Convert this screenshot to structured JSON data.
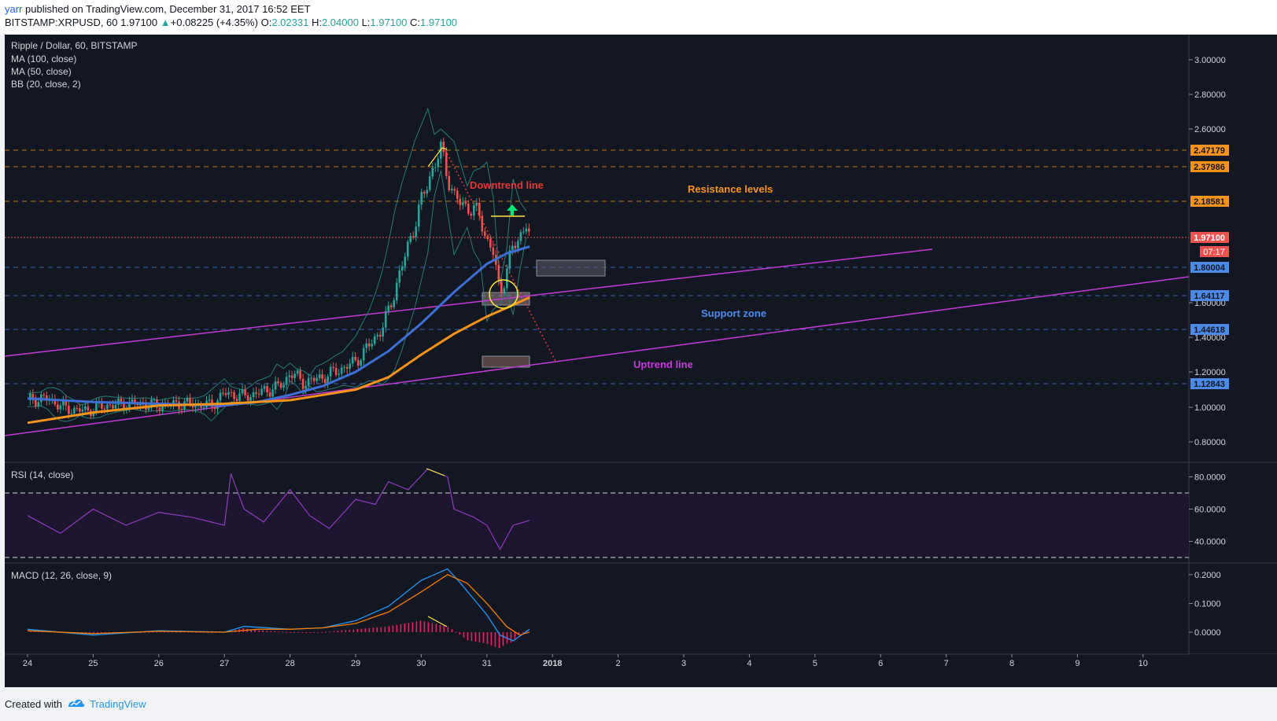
{
  "header": {
    "author": "yarr",
    "published_text": " published on TradingView.com, December 31, 2017 16:52 EET",
    "symbol": "BITSTAMP:XRPUSD, 60",
    "last": "1.97100",
    "change": "+0.08225 (+4.35%)",
    "o_label": "O:",
    "o_value": "2.02331",
    "h_label": "H:",
    "h_value": "2.04000",
    "l_label": "L:",
    "l_value": "1.97100",
    "c_label": "C:",
    "c_value": "1.97100"
  },
  "legend": {
    "title": "Ripple / Dollar, 60, BITSTAMP",
    "ma100": "MA (100, close)",
    "ma50": "MA (50, close)",
    "bb": "BB (20, close, 2)",
    "rsi": "RSI (14, close)",
    "macd": "MACD (12, 26, close, 9)"
  },
  "annotations": {
    "downtrend": "Downtrend line",
    "resistance": "Resistance levels",
    "support": "Support zone",
    "uptrend": "Uptrend line"
  },
  "price_tags": {
    "last_price": "1.97100",
    "countdown": "07:17"
  },
  "footer": {
    "created": "Created with",
    "brand": "TradingView"
  },
  "colors": {
    "background": "#131722",
    "ma100": "#f7931a",
    "ma50": "#3d6fd6",
    "bollinger": "#2a7a75",
    "uptrend": "#c33bd6",
    "resistance": "#f7931a",
    "support": "#4c8ae8",
    "downtrend": "#e53935",
    "rsi": "#8e3dbd",
    "macd": "#2196f3",
    "signal": "#f57c00",
    "histogram": "#e91e63"
  },
  "chart_data": [
    {
      "type": "candlestick",
      "title": "Ripple / Dollar, 60, BITSTAMP",
      "x_axis": {
        "ticks": [
          "24",
          "25",
          "26",
          "27",
          "28",
          "29",
          "30",
          "31",
          "2018",
          "2",
          "3",
          "4",
          "5",
          "6",
          "7",
          "8",
          "9",
          "10"
        ]
      },
      "y_axis": {
        "ticks": [
          "3.00000",
          "2.80000",
          "2.60000",
          "1.60000",
          "1.40000",
          "1.20000",
          "1.00000",
          "0.80000"
        ],
        "range": [
          0.68,
          3.12
        ]
      },
      "resistance_levels": [
        "2.47179",
        "2.37986",
        "2.18581"
      ],
      "support_levels": [
        "1.80004",
        "1.64117",
        "1.44618",
        "1.12843"
      ],
      "last_price": 1.971,
      "price_path": [
        [
          0,
          1.04
        ],
        [
          0.3,
          1.05
        ],
        [
          0.6,
          0.99
        ],
        [
          0.9,
          0.98
        ],
        [
          1.2,
          1.01
        ],
        [
          1.6,
          1.02
        ],
        [
          2.0,
          1.01
        ],
        [
          2.4,
          1.02
        ],
        [
          2.8,
          1.01
        ],
        [
          3.0,
          1.08
        ],
        [
          3.3,
          1.06
        ],
        [
          3.6,
          1.09
        ],
        [
          3.9,
          1.13
        ],
        [
          4.0,
          1.2
        ],
        [
          4.2,
          1.14
        ],
        [
          4.5,
          1.17
        ],
        [
          4.8,
          1.22
        ],
        [
          5.0,
          1.26
        ],
        [
          5.2,
          1.35
        ],
        [
          5.4,
          1.45
        ],
        [
          5.5,
          1.55
        ],
        [
          5.7,
          1.8
        ],
        [
          5.9,
          2.05
        ],
        [
          6.1,
          2.3
        ],
        [
          6.3,
          2.48
        ],
        [
          6.5,
          2.2
        ],
        [
          6.7,
          2.15
        ],
        [
          6.9,
          2.1
        ],
        [
          7.0,
          1.95
        ],
        [
          7.1,
          1.88
        ],
        [
          7.2,
          1.65
        ],
        [
          7.3,
          1.78
        ],
        [
          7.4,
          1.92
        ],
        [
          7.5,
          1.98
        ],
        [
          7.6,
          2.05
        ],
        [
          7.65,
          1.97
        ]
      ],
      "ma50": [
        [
          0,
          1.05
        ],
        [
          1.0,
          1.03
        ],
        [
          2.0,
          1.02
        ],
        [
          3.0,
          1.01
        ],
        [
          3.5,
          1.03
        ],
        [
          4.0,
          1.07
        ],
        [
          4.5,
          1.12
        ],
        [
          5.0,
          1.2
        ],
        [
          5.5,
          1.32
        ],
        [
          6.0,
          1.48
        ],
        [
          6.5,
          1.66
        ],
        [
          7.0,
          1.82
        ],
        [
          7.3,
          1.88
        ],
        [
          7.65,
          1.92
        ]
      ],
      "ma100": [
        [
          0,
          0.91
        ],
        [
          1.0,
          0.97
        ],
        [
          2.0,
          1.01
        ],
        [
          3.0,
          1.02
        ],
        [
          4.0,
          1.04
        ],
        [
          4.5,
          1.07
        ],
        [
          5.0,
          1.1
        ],
        [
          5.5,
          1.17
        ],
        [
          6.0,
          1.3
        ],
        [
          6.5,
          1.42
        ],
        [
          7.0,
          1.52
        ],
        [
          7.3,
          1.57
        ],
        [
          7.65,
          1.63
        ]
      ]
    },
    {
      "type": "line",
      "title": "RSI (14, close)",
      "y_axis": {
        "ticks": [
          "80.0000",
          "60.0000",
          "40.0000"
        ],
        "range": [
          20,
          90
        ]
      },
      "bands": [
        30,
        70
      ],
      "series": [
        [
          0,
          56
        ],
        [
          0.5,
          45
        ],
        [
          1.0,
          60
        ],
        [
          1.5,
          50
        ],
        [
          2.0,
          58
        ],
        [
          2.5,
          55
        ],
        [
          3.0,
          50
        ],
        [
          3.1,
          82
        ],
        [
          3.3,
          60
        ],
        [
          3.6,
          52
        ],
        [
          4.0,
          72
        ],
        [
          4.3,
          56
        ],
        [
          4.6,
          48
        ],
        [
          5.0,
          66
        ],
        [
          5.3,
          63
        ],
        [
          5.5,
          77
        ],
        [
          5.8,
          72
        ],
        [
          6.1,
          85
        ],
        [
          6.4,
          80
        ],
        [
          6.5,
          60
        ],
        [
          6.8,
          55
        ],
        [
          7.0,
          50
        ],
        [
          7.2,
          35
        ],
        [
          7.4,
          50
        ],
        [
          7.65,
          53
        ]
      ]
    },
    {
      "type": "line",
      "title": "MACD (12, 26, close, 9)",
      "y_axis": {
        "ticks": [
          "0.2000",
          "0.1000",
          "0.0000"
        ],
        "range": [
          -0.06,
          0.23
        ]
      },
      "macd": [
        [
          0,
          0.01
        ],
        [
          1.0,
          -0.01
        ],
        [
          2.0,
          0.005
        ],
        [
          3.0,
          0.0
        ],
        [
          3.3,
          0.02
        ],
        [
          4.0,
          0.01
        ],
        [
          4.5,
          0.015
        ],
        [
          5.0,
          0.04
        ],
        [
          5.5,
          0.09
        ],
        [
          6.0,
          0.18
        ],
        [
          6.4,
          0.22
        ],
        [
          6.6,
          0.17
        ],
        [
          7.0,
          0.06
        ],
        [
          7.2,
          -0.01
        ],
        [
          7.4,
          -0.03
        ],
        [
          7.65,
          0.01
        ]
      ],
      "signal": [
        [
          0,
          0.005
        ],
        [
          1.0,
          -0.005
        ],
        [
          2.0,
          0.003
        ],
        [
          3.0,
          0.0
        ],
        [
          3.5,
          0.01
        ],
        [
          4.0,
          0.01
        ],
        [
          4.5,
          0.015
        ],
        [
          5.0,
          0.03
        ],
        [
          5.5,
          0.07
        ],
        [
          6.0,
          0.14
        ],
        [
          6.4,
          0.2
        ],
        [
          6.7,
          0.17
        ],
        [
          7.0,
          0.1
        ],
        [
          7.3,
          0.02
        ],
        [
          7.5,
          -0.01
        ],
        [
          7.65,
          0.0
        ]
      ]
    }
  ]
}
